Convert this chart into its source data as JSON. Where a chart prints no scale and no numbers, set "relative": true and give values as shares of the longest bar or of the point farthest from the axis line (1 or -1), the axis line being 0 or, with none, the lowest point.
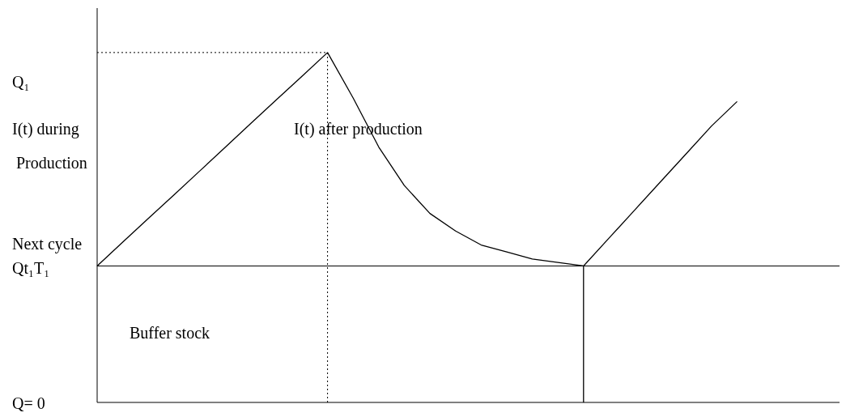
{
  "chart_data": {
    "type": "line",
    "relative": true,
    "marker": "none",
    "line_style": "solid",
    "categories": [
      null,
      null,
      null,
      null,
      null,
      null,
      null,
      null,
      null,
      null,
      null,
      null,
      null,
      null,
      null,
      null,
      null,
      null,
      null,
      null,
      null,
      null,
      null,
      null,
      null,
      null,
      null,
      null,
      null,
      null
    ],
    "series": [
      {
        "color": "#000000",
        "values": [
          0.39,
          0.458,
          0.526,
          0.593,
          0.661,
          0.729,
          0.797,
          0.865,
          0.932,
          1,
          0.87,
          0.73,
          0.62,
          0.54,
          0.49,
          0.45,
          0.43,
          0.41,
          0.4,
          0.39,
          0.47,
          0.55,
          0.63,
          0.71,
          0.79,
          0.86,
          null,
          null,
          null,
          null
        ]
      }
    ],
    "ref_lines": [
      {
        "axis": "y",
        "value": 0.39,
        "color": "#000000",
        "line_style": "solid"
      }
    ],
    "annotations": [
      "Q₁",
      "I(t) during",
      "I(t) after production",
      "Production",
      "Next cycle",
      "Qt₁T₁",
      "Buffer stock",
      "Q= 0"
    ]
  }
}
